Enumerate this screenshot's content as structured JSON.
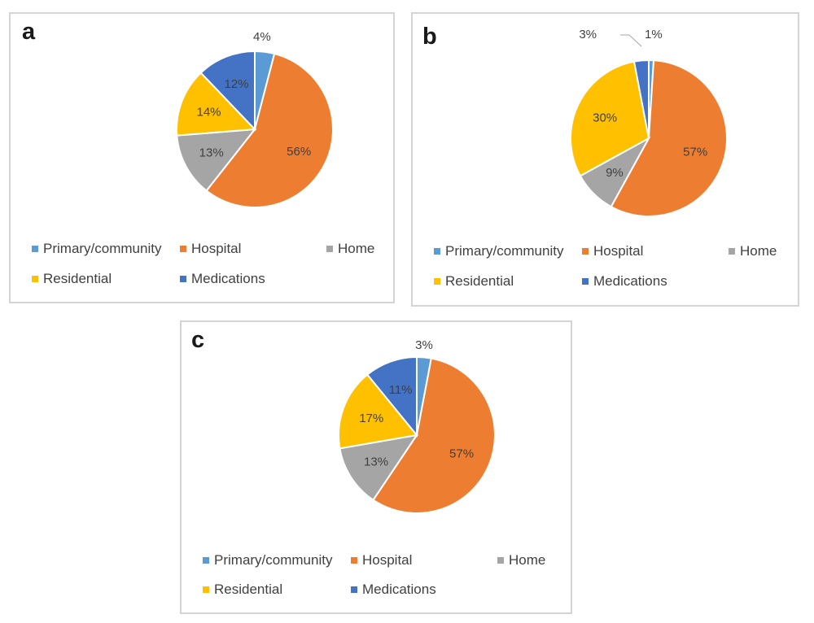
{
  "legend_categories": [
    "Primary/community",
    "Hospital",
    "Home",
    "Residential",
    "Medications"
  ],
  "colors": {
    "Primary/community": "#5b9bd5",
    "Hospital": "#ed7d31",
    "Home": "#a5a5a5",
    "Residential": "#ffc000",
    "Medications": "#4472c4"
  },
  "panels": [
    {
      "letter": "a"
    },
    {
      "letter": "b"
    },
    {
      "letter": "c"
    }
  ],
  "chart_data": [
    {
      "type": "pie",
      "panel": "a",
      "categories": [
        "Primary/community",
        "Hospital",
        "Home",
        "Residential",
        "Medications"
      ],
      "values": [
        4,
        56,
        13,
        14,
        12
      ],
      "labels": [
        "4%",
        "56%",
        "13%",
        "14%",
        "12%"
      ],
      "legend": "bottom"
    },
    {
      "type": "pie",
      "panel": "b",
      "categories": [
        "Primary/community",
        "Hospital",
        "Home",
        "Residential",
        "Medications"
      ],
      "values": [
        1,
        57,
        9,
        30,
        3
      ],
      "labels": [
        "1%",
        "57%",
        "9%",
        "30%",
        "3%"
      ],
      "legend": "bottom"
    },
    {
      "type": "pie",
      "panel": "c",
      "categories": [
        "Primary/community",
        "Hospital",
        "Home",
        "Residential",
        "Medications"
      ],
      "values": [
        3,
        57,
        13,
        17,
        11
      ],
      "labels": [
        "3%",
        "57%",
        "13%",
        "17%",
        "11%"
      ],
      "legend": "bottom"
    }
  ]
}
